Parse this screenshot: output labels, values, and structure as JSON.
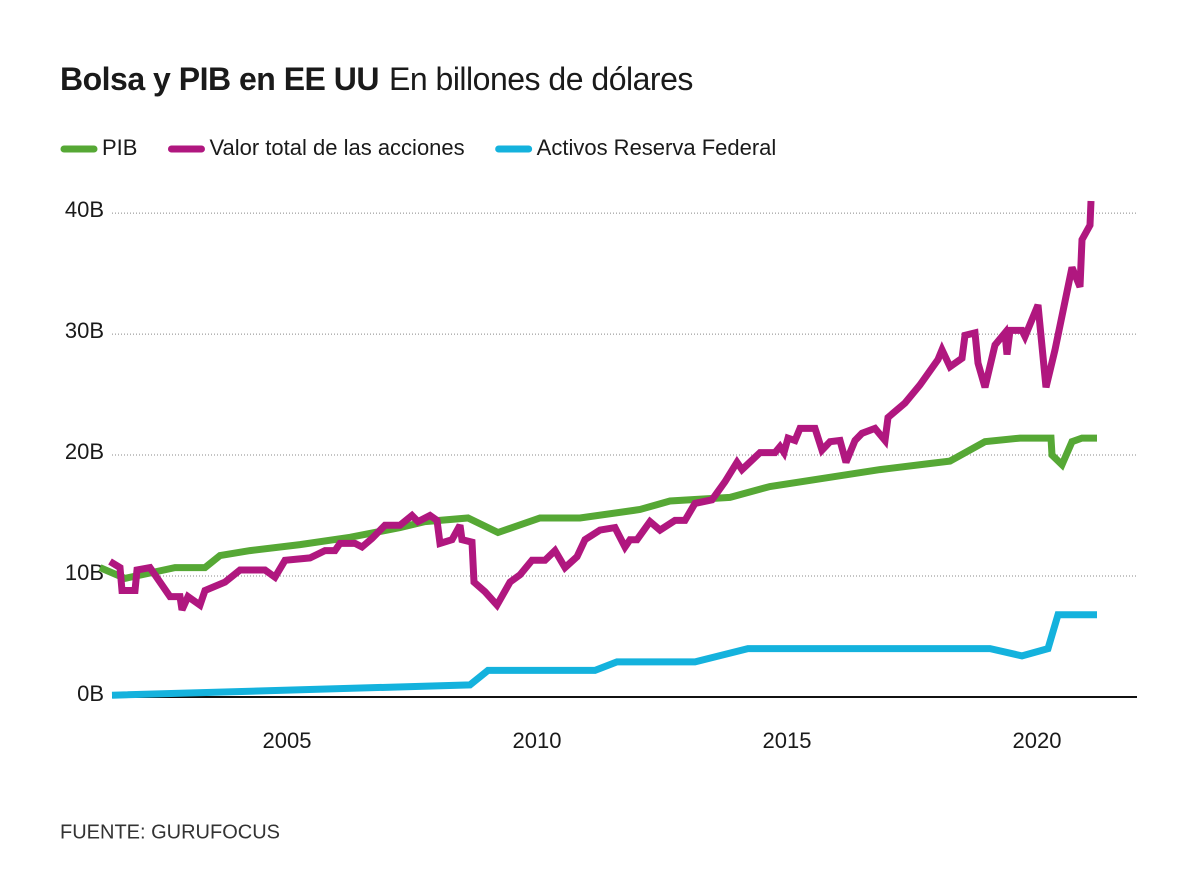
{
  "chart_data": {
    "type": "line",
    "title": "Bolsa y PIB en EE UU",
    "subtitle": "En billones de dólares",
    "source": "FUENTE: GURUFOCUS",
    "xlim": [
      2001.5,
      2022.0
    ],
    "xticks": [
      2005,
      2010,
      2015,
      2020
    ],
    "ylim": [
      0,
      41
    ],
    "yticks": [
      {
        "value": 0,
        "label": "0B"
      },
      {
        "value": 10,
        "label": "10B"
      },
      {
        "value": 20,
        "label": "20B"
      },
      {
        "value": 30,
        "label": "30B"
      },
      {
        "value": 40,
        "label": "40B"
      }
    ],
    "grid": true,
    "legend": "top",
    "series": [
      {
        "name": "PIB",
        "color": "#56a835",
        "x": [
          2001.26,
          2001.76,
          2002.76,
          2003.36,
          2003.66,
          2004.26,
          2005.26,
          2006.26,
          2007.26,
          2007.76,
          2008.62,
          2009.22,
          2010.06,
          2010.86,
          2012.06,
          2012.66,
          2013.86,
          2014.66,
          2016.86,
          2017.86,
          2018.26,
          2018.96,
          2019.66,
          2020.28,
          2020.3,
          2020.5,
          2020.7,
          2020.9,
          2021.2
        ],
        "values": [
          10.7,
          9.8,
          10.7,
          10.7,
          11.7,
          12.1,
          12.6,
          13.2,
          14.0,
          14.5,
          14.8,
          13.6,
          14.8,
          14.8,
          15.5,
          16.2,
          16.5,
          17.4,
          18.8,
          19.3,
          19.5,
          21.1,
          21.4,
          21.4,
          20.0,
          19.2,
          21.1,
          21.4,
          21.4
        ]
      },
      {
        "name": "Valor total de las acciones",
        "color": "#b0177f",
        "x": [
          2001.46,
          2001.66,
          2001.7,
          2001.96,
          2002.0,
          2002.26,
          2002.66,
          2002.86,
          2002.9,
          2003.02,
          2003.26,
          2003.36,
          2003.76,
          2004.06,
          2004.56,
          2004.76,
          2004.96,
          2005.46,
          2005.76,
          2005.96,
          2006.06,
          2006.36,
          2006.5,
          2006.7,
          2006.96,
          2007.26,
          2007.5,
          2007.62,
          2007.86,
          2008.0,
          2008.06,
          2008.3,
          2008.46,
          2008.5,
          2008.7,
          2008.74,
          2008.96,
          2009.2,
          2009.46,
          2009.66,
          2009.9,
          2010.16,
          2010.36,
          2010.56,
          2010.8,
          2010.96,
          2011.26,
          2011.56,
          2011.76,
          2011.86,
          2012.0,
          2012.26,
          2012.46,
          2012.76,
          2012.96,
          2013.16,
          2013.5,
          2013.76,
          2014.0,
          2014.1,
          2014.46,
          2014.76,
          2014.86,
          2014.94,
          2015.02,
          2015.16,
          2015.26,
          2015.56,
          2015.7,
          2015.86,
          2016.06,
          2016.18,
          2016.36,
          2016.5,
          2016.76,
          2016.96,
          2017.02,
          2017.36,
          2017.66,
          2018.02,
          2018.1,
          2018.26,
          2018.5,
          2018.56,
          2018.76,
          2018.82,
          2018.96,
          2019.16,
          2019.36,
          2019.4,
          2019.46,
          2019.7,
          2019.76,
          2020.02,
          2020.18,
          2020.36,
          2020.7,
          2020.86,
          2020.9,
          2021.06,
          2021.08
        ],
        "values": [
          11.2,
          10.7,
          8.8,
          8.8,
          10.5,
          10.7,
          8.3,
          8.3,
          7.2,
          8.3,
          7.6,
          8.8,
          9.5,
          10.5,
          10.5,
          9.9,
          11.3,
          11.5,
          12.1,
          12.1,
          12.7,
          12.7,
          12.4,
          13.1,
          14.2,
          14.2,
          15.0,
          14.5,
          15.0,
          14.6,
          12.7,
          13.0,
          14.2,
          13.0,
          12.8,
          9.5,
          8.7,
          7.6,
          9.5,
          10.1,
          11.3,
          11.3,
          12.1,
          10.7,
          11.6,
          13.0,
          13.8,
          14.0,
          12.4,
          13.0,
          13.0,
          14.5,
          13.8,
          14.6,
          14.6,
          16.0,
          16.3,
          17.8,
          19.4,
          18.8,
          20.2,
          20.2,
          20.7,
          20.2,
          21.4,
          21.2,
          22.2,
          22.2,
          20.4,
          21.1,
          21.2,
          19.4,
          21.2,
          21.8,
          22.2,
          21.2,
          23.1,
          24.3,
          25.8,
          27.9,
          28.7,
          27.3,
          28.0,
          29.9,
          30.1,
          27.6,
          25.6,
          29.1,
          30.1,
          28.3,
          30.3,
          30.3,
          29.8,
          32.4,
          25.6,
          28.7,
          35.5,
          33.9,
          37.8,
          39.0,
          41.0
        ]
      },
      {
        "name": "Activos Reserva Federal",
        "color": "#14b2dd",
        "x": [
          2001.5,
          2008.66,
          2009.02,
          2011.16,
          2011.6,
          2013.16,
          2014.22,
          2019.06,
          2019.7,
          2020.22,
          2020.42,
          2021.2
        ],
        "values": [
          0.15,
          1.0,
          2.2,
          2.2,
          2.9,
          2.9,
          4.0,
          4.0,
          3.4,
          4.0,
          6.8,
          6.8
        ]
      }
    ]
  }
}
